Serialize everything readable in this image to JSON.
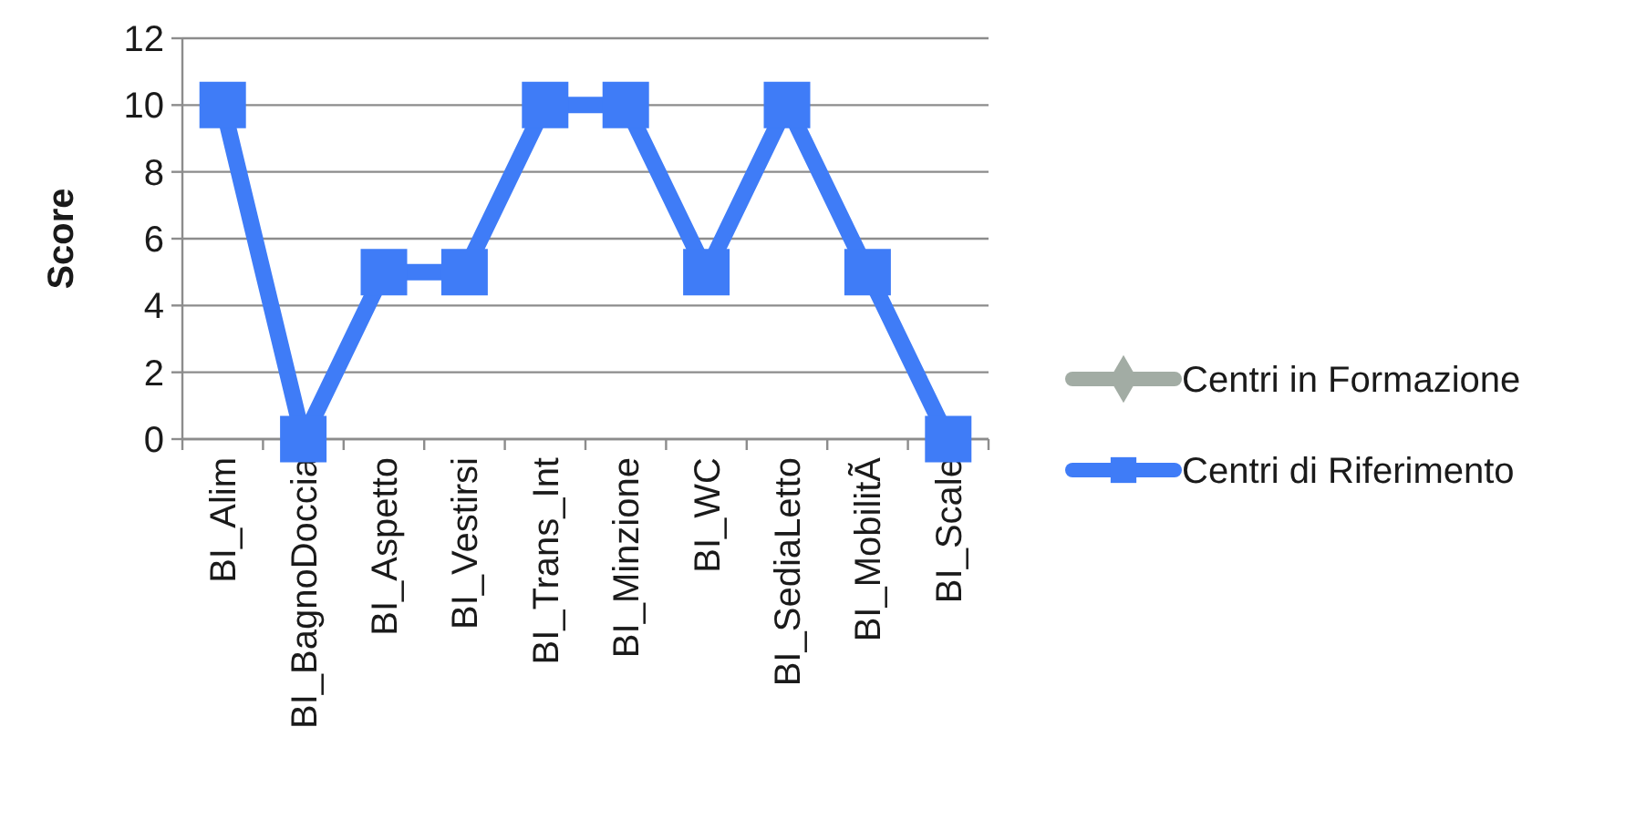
{
  "chart_data": {
    "type": "line",
    "ylabel": "Score",
    "categories": [
      "BI_Alim",
      "BI_BagnoDoccia",
      "BI_Aspetto",
      "BI_Vestirsi",
      "BI_Trans_Int",
      "BI_Minzione",
      "BI_WC",
      "BI_SediaLetto",
      "BI_MobilitÃ",
      "BI_Scale"
    ],
    "series": [
      {
        "name": "Centri in Formazione",
        "color": "#a2aca4",
        "marker": "diamond",
        "values": [
          null,
          null,
          null,
          null,
          null,
          null,
          null,
          null,
          null,
          null
        ]
      },
      {
        "name": "Centri di Riferimento",
        "color": "#3f7cf7",
        "marker": "square",
        "values": [
          10,
          0,
          5,
          5,
          10,
          10,
          5,
          10,
          5,
          0
        ]
      }
    ],
    "ylim": [
      0,
      12
    ],
    "yticks": [
      0,
      2,
      4,
      6,
      8,
      10,
      12
    ],
    "grid": "y",
    "legend": "right",
    "line_style": "solid"
  }
}
